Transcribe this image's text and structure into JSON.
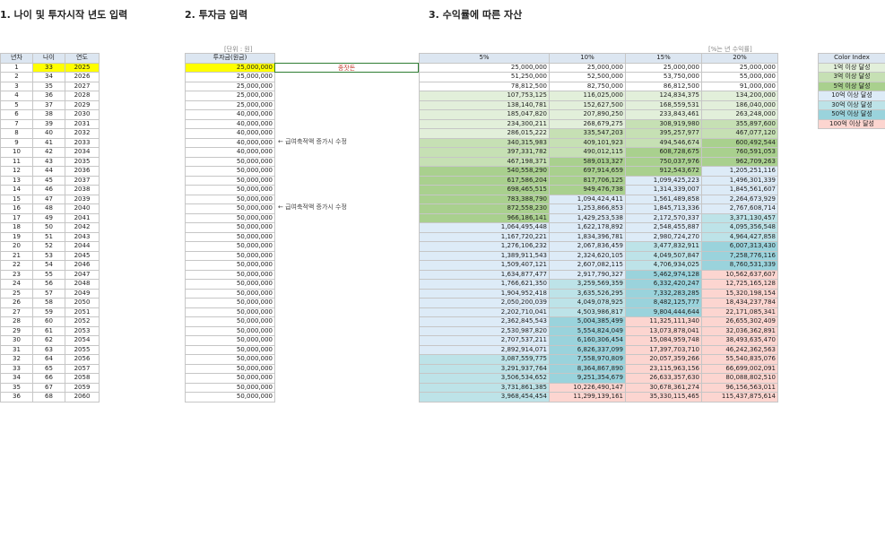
{
  "headers": {
    "h1": "1. 나이 및 투자시작 년도 입력",
    "h2": "2. 투자금 입력",
    "h3": "3. 수익률에 따른 자산"
  },
  "notes": {
    "unit": "[단위 : 원]",
    "pct": "[%는 년 수익률]"
  },
  "col1": {
    "headers": [
      "년차",
      "나이",
      "연도"
    ]
  },
  "col2": {
    "header": "투자금(원금)",
    "memo_start": "종잣돈",
    "memo_increase": "← 급여축적액 증가시 수정"
  },
  "col3": {
    "headers": [
      "5%",
      "10%",
      "15%",
      "20%"
    ]
  },
  "legend": {
    "title": "Color Index",
    "items": [
      "1억 이상 달성",
      "3억 이상 달성",
      "5억 이상 달성",
      "10억 이상 달성",
      "30억 이상 달성",
      "50억 이상 달성",
      "100억 이상 달성"
    ],
    "colors": [
      "#e2efda",
      "#c6e0b4",
      "#a9d08e",
      "#ddebf7",
      "#bde3e8",
      "#9ad3dc",
      "#fcd5d0"
    ]
  },
  "rows": [
    [
      "1",
      "33",
      "2025",
      "25,000,000",
      "25,000,000",
      "25,000,000",
      "25,000,000",
      "25,000,000"
    ],
    [
      "2",
      "34",
      "2026",
      "25,000,000",
      "51,250,000",
      "52,500,000",
      "53,750,000",
      "55,000,000"
    ],
    [
      "3",
      "35",
      "2027",
      "25,000,000",
      "78,812,500",
      "82,750,000",
      "86,812,500",
      "91,000,000"
    ],
    [
      "4",
      "36",
      "2028",
      "25,000,000",
      "107,753,125",
      "116,025,000",
      "124,834,375",
      "134,200,000"
    ],
    [
      "5",
      "37",
      "2029",
      "25,000,000",
      "138,140,781",
      "152,627,500",
      "168,559,531",
      "186,040,000"
    ],
    [
      "6",
      "38",
      "2030",
      "40,000,000",
      "185,047,820",
      "207,890,250",
      "233,843,461",
      "263,248,000"
    ],
    [
      "7",
      "39",
      "2031",
      "40,000,000",
      "234,300,211",
      "268,679,275",
      "308,919,980",
      "355,897,600"
    ],
    [
      "8",
      "40",
      "2032",
      "40,000,000",
      "286,015,222",
      "335,547,203",
      "395,257,977",
      "467,077,120"
    ],
    [
      "9",
      "41",
      "2033",
      "40,000,000",
      "340,315,983",
      "409,101,923",
      "494,546,674",
      "600,492,544"
    ],
    [
      "10",
      "42",
      "2034",
      "40,000,000",
      "397,331,782",
      "490,012,115",
      "608,728,675",
      "760,591,053"
    ],
    [
      "11",
      "43",
      "2035",
      "50,000,000",
      "467,198,371",
      "589,013,327",
      "750,037,976",
      "962,709,263"
    ],
    [
      "12",
      "44",
      "2036",
      "50,000,000",
      "540,558,290",
      "697,914,659",
      "912,543,672",
      "1,205,251,116"
    ],
    [
      "13",
      "45",
      "2037",
      "50,000,000",
      "617,586,204",
      "817,706,125",
      "1,099,425,223",
      "1,496,301,339"
    ],
    [
      "14",
      "46",
      "2038",
      "50,000,000",
      "698,465,515",
      "949,476,738",
      "1,314,339,007",
      "1,845,561,607"
    ],
    [
      "15",
      "47",
      "2039",
      "50,000,000",
      "783,388,790",
      "1,094,424,411",
      "1,561,489,858",
      "2,264,673,929"
    ],
    [
      "16",
      "48",
      "2040",
      "50,000,000",
      "872,558,230",
      "1,253,866,853",
      "1,845,713,336",
      "2,767,608,714"
    ],
    [
      "17",
      "49",
      "2041",
      "50,000,000",
      "966,186,141",
      "1,429,253,538",
      "2,172,570,337",
      "3,371,130,457"
    ],
    [
      "18",
      "50",
      "2042",
      "50,000,000",
      "1,064,495,448",
      "1,622,178,892",
      "2,548,455,887",
      "4,095,356,548"
    ],
    [
      "19",
      "51",
      "2043",
      "50,000,000",
      "1,167,720,221",
      "1,834,396,781",
      "2,980,724,270",
      "4,964,427,858"
    ],
    [
      "20",
      "52",
      "2044",
      "50,000,000",
      "1,276,106,232",
      "2,067,836,459",
      "3,477,832,911",
      "6,007,313,430"
    ],
    [
      "21",
      "53",
      "2045",
      "50,000,000",
      "1,389,911,543",
      "2,324,620,105",
      "4,049,507,847",
      "7,258,776,116"
    ],
    [
      "22",
      "54",
      "2046",
      "50,000,000",
      "1,509,407,121",
      "2,607,082,115",
      "4,706,934,025",
      "8,760,531,339"
    ],
    [
      "23",
      "55",
      "2047",
      "50,000,000",
      "1,634,877,477",
      "2,917,790,327",
      "5,462,974,128",
      "10,562,637,607"
    ],
    [
      "24",
      "56",
      "2048",
      "50,000,000",
      "1,766,621,350",
      "3,259,569,359",
      "6,332,420,247",
      "12,725,165,128"
    ],
    [
      "25",
      "57",
      "2049",
      "50,000,000",
      "1,904,952,418",
      "3,635,526,295",
      "7,332,283,285",
      "15,320,198,154"
    ],
    [
      "26",
      "58",
      "2050",
      "50,000,000",
      "2,050,200,039",
      "4,049,078,925",
      "8,482,125,777",
      "18,434,237,784"
    ],
    [
      "27",
      "59",
      "2051",
      "50,000,000",
      "2,202,710,041",
      "4,503,986,817",
      "9,804,444,644",
      "22,171,085,341"
    ],
    [
      "28",
      "60",
      "2052",
      "50,000,000",
      "2,362,845,543",
      "5,004,385,499",
      "11,325,111,340",
      "26,655,302,409"
    ],
    [
      "29",
      "61",
      "2053",
      "50,000,000",
      "2,530,987,820",
      "5,554,824,049",
      "13,073,878,041",
      "32,036,362,891"
    ],
    [
      "30",
      "62",
      "2054",
      "50,000,000",
      "2,707,537,211",
      "6,160,306,454",
      "15,084,959,748",
      "38,493,635,470"
    ],
    [
      "31",
      "63",
      "2055",
      "50,000,000",
      "2,892,914,071",
      "6,826,337,099",
      "17,397,703,710",
      "46,242,362,563"
    ],
    [
      "32",
      "64",
      "2056",
      "50,000,000",
      "3,087,559,775",
      "7,558,970,809",
      "20,057,359,266",
      "55,540,835,076"
    ],
    [
      "33",
      "65",
      "2057",
      "50,000,000",
      "3,291,937,764",
      "8,364,867,890",
      "23,115,963,156",
      "66,699,002,091"
    ],
    [
      "34",
      "66",
      "2058",
      "50,000,000",
      "3,506,534,652",
      "9,251,354,679",
      "26,633,357,630",
      "80,088,802,510"
    ],
    [
      "35",
      "67",
      "2059",
      "50,000,000",
      "3,731,861,385",
      "10,226,490,147",
      "30,678,361,274",
      "96,156,563,011"
    ],
    [
      "36",
      "68",
      "2060",
      "50,000,000",
      "3,968,454,454",
      "11,299,139,161",
      "35,330,115,465",
      "115,437,875,614"
    ]
  ]
}
